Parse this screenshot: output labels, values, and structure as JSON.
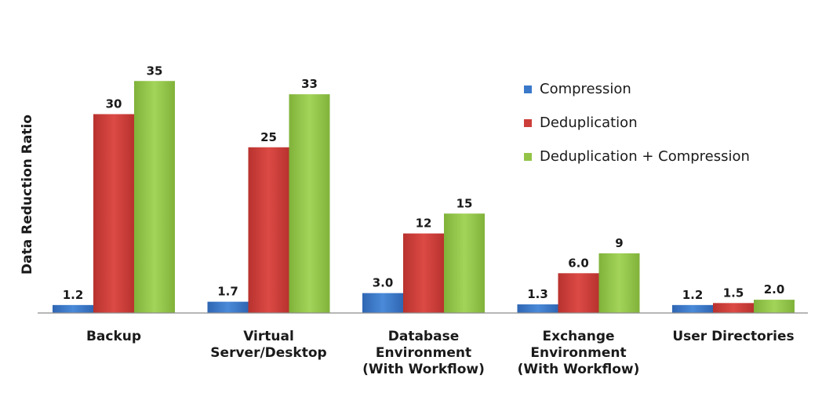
{
  "chart_data": {
    "type": "bar",
    "ylabel": "Data Reduction Ratio",
    "xlabel": "",
    "ylim": [
      0,
      36
    ],
    "grid": false,
    "legend_position": "top-right",
    "categories": [
      [
        "Backup"
      ],
      [
        "Virtual",
        "Server/Desktop"
      ],
      [
        "Database",
        "Environment",
        "(With Workflow)"
      ],
      [
        "Exchange",
        "Environment",
        "(With Workflow)"
      ],
      [
        "User Directories"
      ]
    ],
    "series": [
      {
        "name": "Compression",
        "color": "#3a78c9",
        "values": [
          1.2,
          1.7,
          3.0,
          1.3,
          1.2
        ],
        "labels": [
          "1.2",
          "1.7",
          "3.0",
          "1.3",
          "1.2"
        ]
      },
      {
        "name": "Deduplication",
        "color": "#cc3e3a",
        "values": [
          30,
          25,
          12,
          6.0,
          1.5
        ],
        "labels": [
          "30",
          "25",
          "12",
          "6.0",
          "1.5"
        ]
      },
      {
        "name": "Deduplication + Compression",
        "color": "#93c447",
        "values": [
          35,
          33,
          15,
          9,
          2.0
        ],
        "labels": [
          "35",
          "33",
          "15",
          "9",
          "2.0"
        ]
      }
    ]
  }
}
